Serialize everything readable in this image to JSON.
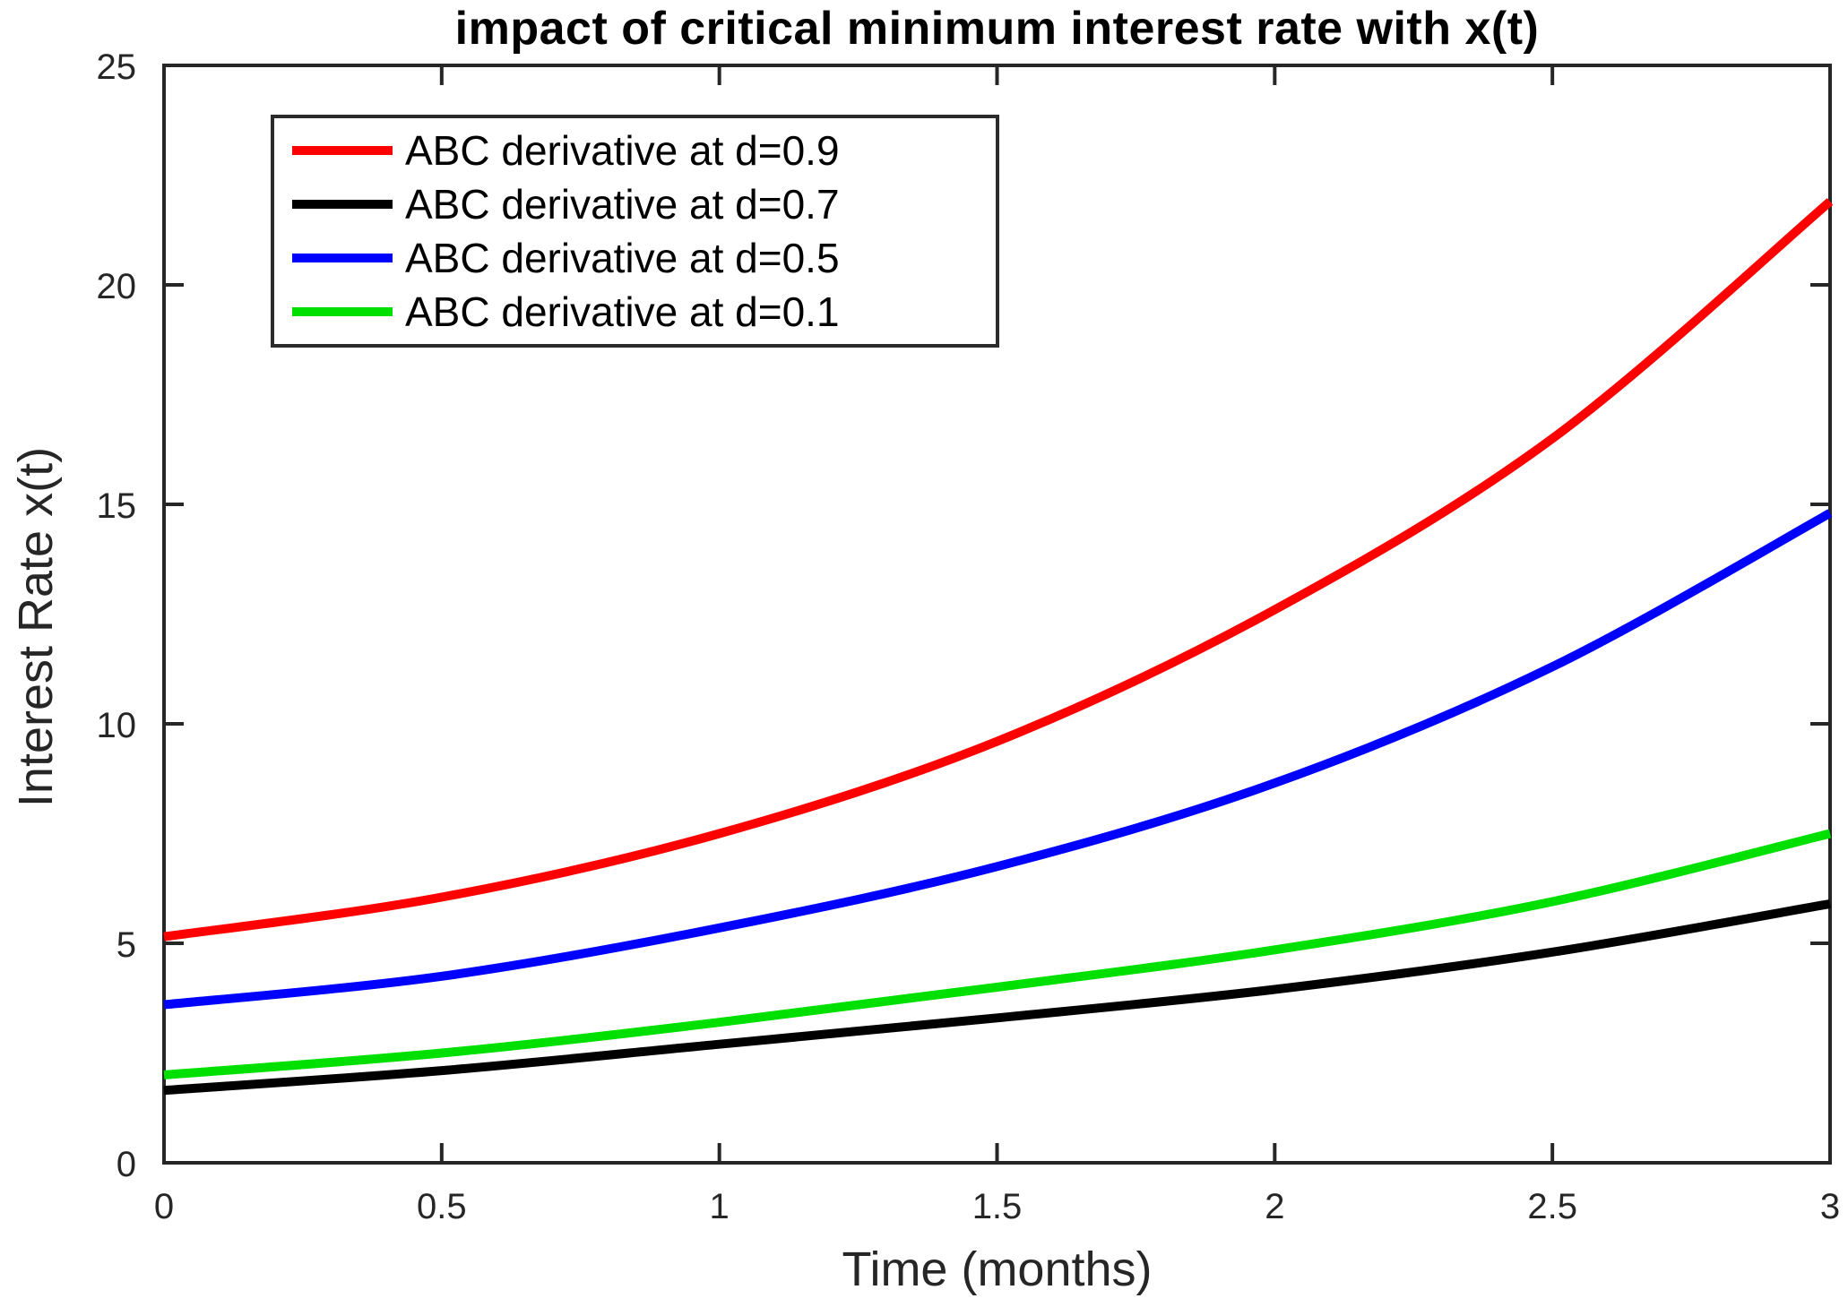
{
  "chart_data": {
    "type": "line",
    "title": "impact of critical minimum interest rate with x(t)",
    "xlabel": "Time (months)",
    "ylabel": "Interest Rate x(t)",
    "xlim": [
      0,
      3
    ],
    "ylim": [
      0,
      25
    ],
    "grid": false,
    "legend_position": "top-left-inside",
    "axis_color": "#262626",
    "x_ticks": [
      {
        "v": 0,
        "label": "0"
      },
      {
        "v": 0.5,
        "label": "0.5"
      },
      {
        "v": 1,
        "label": "1"
      },
      {
        "v": 1.5,
        "label": "1.5"
      },
      {
        "v": 2,
        "label": "2"
      },
      {
        "v": 2.5,
        "label": "2.5"
      },
      {
        "v": 3,
        "label": "3"
      }
    ],
    "y_ticks": [
      {
        "v": 0,
        "label": "0"
      },
      {
        "v": 5,
        "label": "5"
      },
      {
        "v": 10,
        "label": "10"
      },
      {
        "v": 15,
        "label": "15"
      },
      {
        "v": 20,
        "label": "20"
      },
      {
        "v": 25,
        "label": "25"
      }
    ],
    "x": [
      0,
      0.5,
      1,
      1.5,
      2,
      2.5,
      3
    ],
    "series": [
      {
        "name": "ABC derivative at d=0.9",
        "color": "#ff0000",
        "values": [
          5.15,
          6.05,
          7.5,
          9.6,
          12.6,
          16.5,
          21.9
        ]
      },
      {
        "name": "ABC derivative at d=0.7",
        "color": "#000000",
        "values": [
          1.65,
          2.1,
          2.7,
          3.3,
          3.95,
          4.8,
          5.9
        ]
      },
      {
        "name": "ABC derivative at d=0.5",
        "color": "#0000ff",
        "values": [
          3.6,
          4.25,
          5.35,
          6.75,
          8.65,
          11.3,
          14.8
        ]
      },
      {
        "name": "ABC derivative at d=0.1",
        "color": "#00e000",
        "values": [
          2.0,
          2.5,
          3.2,
          4.0,
          4.85,
          5.95,
          7.5
        ]
      }
    ]
  }
}
